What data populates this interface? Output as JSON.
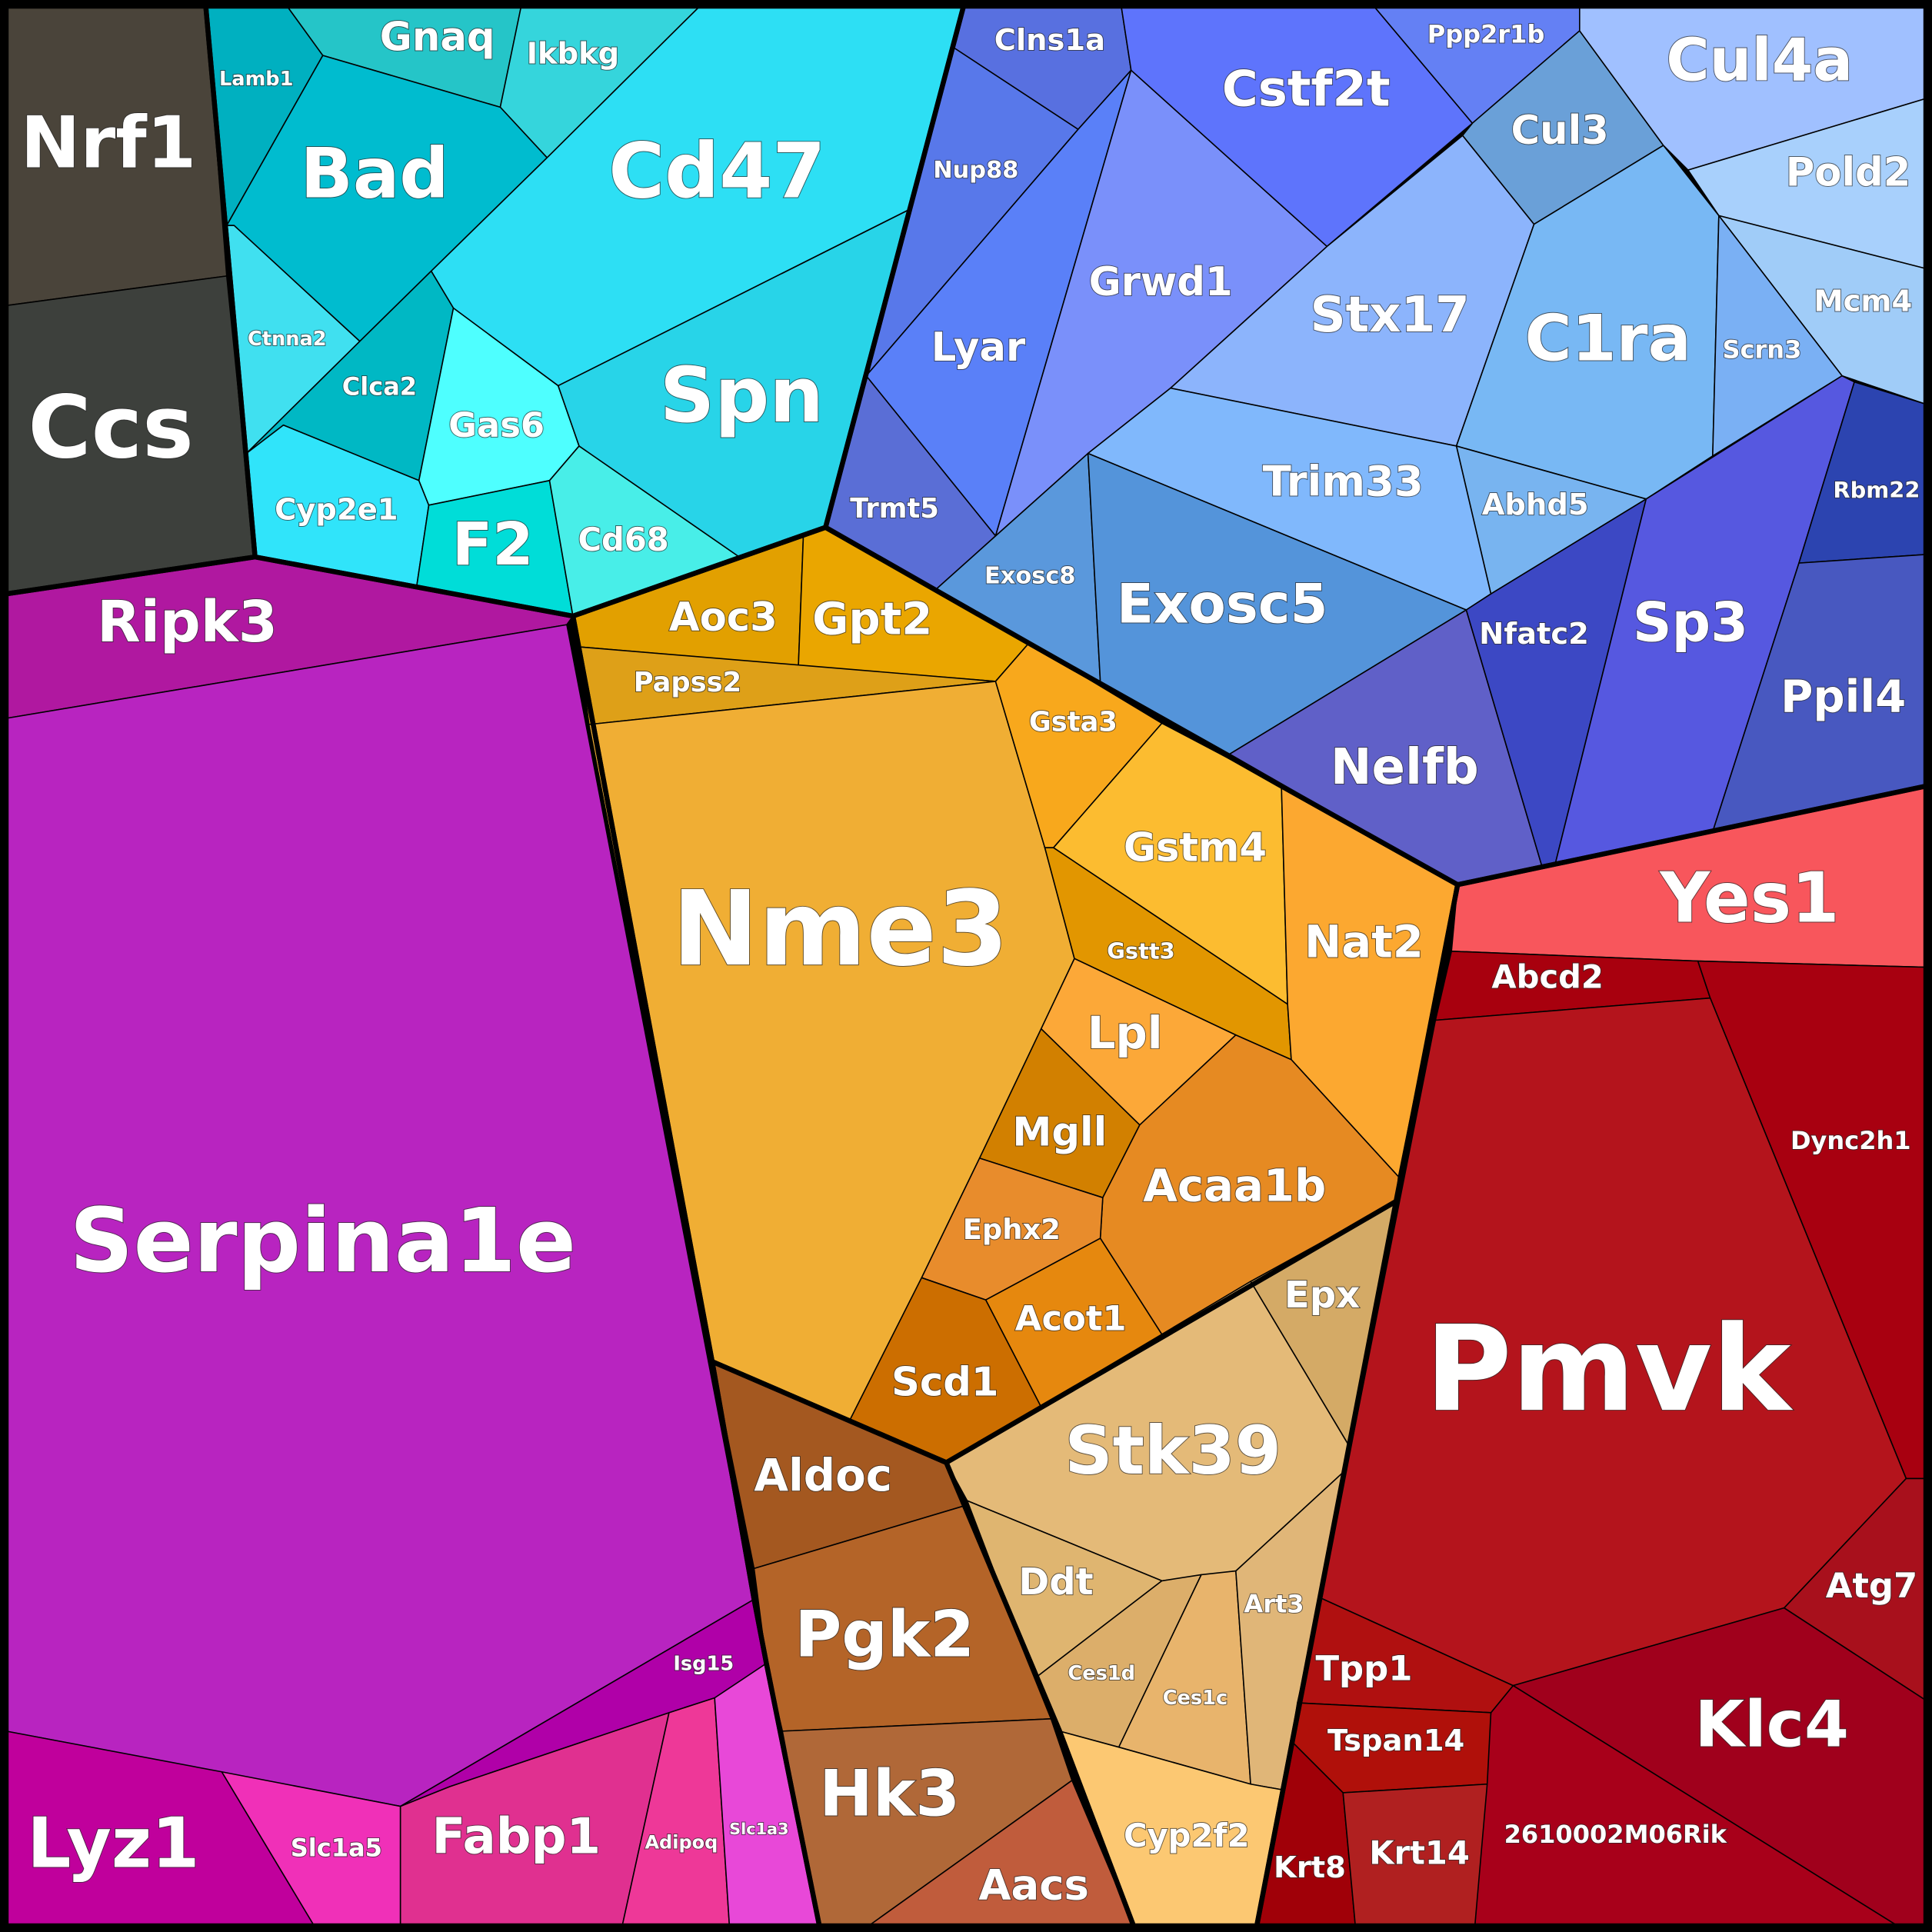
{
  "cells": [
    "Nrf1",
    "Ccs",
    "Lamb1",
    "Gnaq",
    "Ikbkg",
    "Bad",
    "Ctnna2",
    "Clca2",
    "Cyp2e1",
    "Gas6",
    "F2",
    "Cd68",
    "Spn",
    "Cd47",
    "Clns1a",
    "Nup88",
    "Lyar",
    "Trmt5",
    "Grwd1",
    "Cstf2t",
    "Ppp2r1b",
    "Cul3",
    "Stx17",
    "C1ra",
    "Cul4a",
    "Pold2",
    "Mcm4",
    "Scrn3",
    "Abhd5",
    "Trim33",
    "Exosc8",
    "Exosc5",
    "Nelfb",
    "Nfatc2",
    "Sp3",
    "Rbm22",
    "Ppil4",
    "Ripk3",
    "Serpina1e",
    "Isg15",
    "Lyz1",
    "Slc1a5",
    "Fabp1",
    "Adipoq",
    "Slc1a3",
    "Aoc3",
    "Gpt2",
    "Papss2",
    "Nme3",
    "Gsta3",
    "Gstm4",
    "Gstt3",
    "Nat2",
    "Lpl",
    "Mgll",
    "Acaa1b",
    "Ephx2",
    "Acot1",
    "Scd1",
    "Epx",
    "Stk39",
    "Ddt",
    "Ces1d",
    "Ces1c",
    "Art3",
    "Cyp2f2",
    "Aldoc",
    "Pgk2",
    "Hk3",
    "Aacs",
    "Yes1",
    "Abcd2",
    "Dync2h1",
    "Pmvk",
    "Atg7",
    "Klc4",
    "2610002M06Rik",
    "Tpp1",
    "Tspan14",
    "Krt8",
    "Krt14"
  ]
}
